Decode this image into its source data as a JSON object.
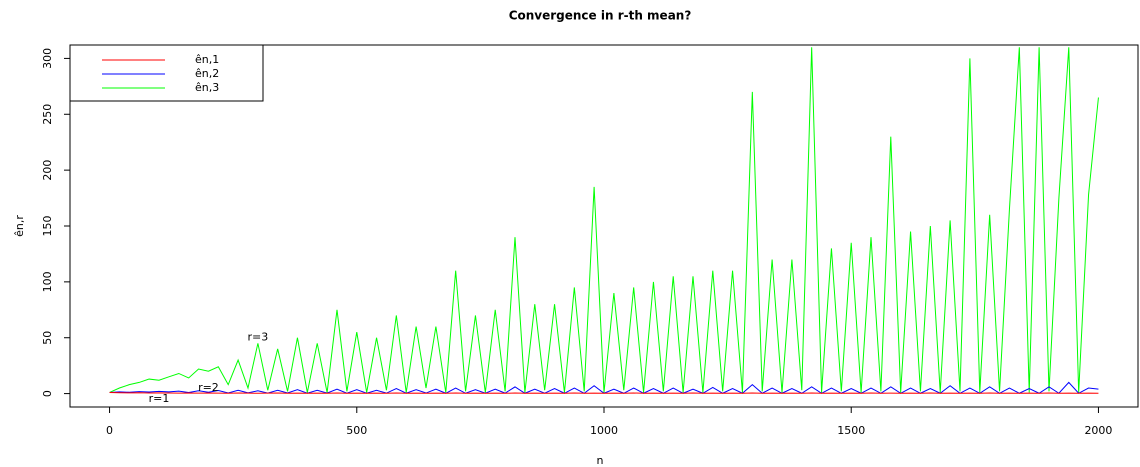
{
  "chart_data": {
    "type": "line",
    "title": "Convergence in r-th mean?",
    "xlabel": "n",
    "ylabel": "ên,r",
    "xlim": [
      -80,
      2080
    ],
    "ylim": [
      -12,
      312
    ],
    "xticks": [
      0,
      500,
      1000,
      1500,
      2000
    ],
    "yticks": [
      0,
      50,
      100,
      150,
      200,
      250,
      300
    ],
    "legend": "top-left",
    "x": [
      0,
      20,
      40,
      60,
      80,
      100,
      120,
      140,
      160,
      180,
      200,
      220,
      240,
      260,
      280,
      300,
      320,
      340,
      360,
      380,
      400,
      420,
      440,
      460,
      480,
      500,
      520,
      540,
      560,
      580,
      600,
      620,
      640,
      660,
      680,
      700,
      720,
      740,
      760,
      780,
      800,
      820,
      840,
      860,
      880,
      900,
      920,
      940,
      960,
      980,
      1000,
      1020,
      1040,
      1060,
      1080,
      1100,
      1120,
      1140,
      1160,
      1180,
      1200,
      1220,
      1240,
      1260,
      1280,
      1300,
      1320,
      1340,
      1360,
      1380,
      1400,
      1420,
      1440,
      1460,
      1480,
      1500,
      1520,
      1540,
      1560,
      1580,
      1600,
      1620,
      1640,
      1660,
      1680,
      1700,
      1720,
      1740,
      1760,
      1780,
      1800,
      1820,
      1840,
      1860,
      1880,
      1900,
      1920,
      1940,
      1960,
      1980,
      2000
    ],
    "series": [
      {
        "name": "ên,1",
        "color": "#ff0000",
        "values": [
          1,
          0.8,
          0.6,
          0.7,
          0.5,
          0.6,
          0.5,
          0.4,
          0.5,
          0.4,
          0.5,
          0.4,
          0.3,
          0.5,
          0.4,
          0.3,
          0.4,
          0.5,
          0.3,
          0.4,
          0.3,
          0.4,
          0.3,
          0.5,
          0.3,
          0.4,
          0.3,
          0.4,
          0.3,
          0.5,
          0.3,
          0.4,
          0.3,
          0.4,
          0.3,
          0.5,
          0.3,
          0.4,
          0.3,
          0.4,
          0.3,
          0.5,
          0.3,
          0.4,
          0.3,
          0.4,
          0.3,
          0.5,
          0.3,
          0.4,
          0.3,
          0.4,
          0.3,
          0.5,
          0.3,
          0.4,
          0.3,
          0.4,
          0.3,
          0.5,
          0.3,
          0.4,
          0.3,
          0.4,
          0.3,
          0.5,
          0.3,
          0.4,
          0.3,
          0.4,
          0.3,
          0.5,
          0.3,
          0.4,
          0.3,
          0.4,
          0.3,
          0.5,
          0.3,
          0.4,
          0.3,
          0.4,
          0.3,
          0.5,
          0.3,
          0.4,
          0.3,
          0.4,
          0.3,
          0.5,
          0.3,
          0.4,
          0.3,
          0.4,
          0.3,
          0.5,
          0.3,
          0.4,
          0.3,
          0.4,
          0.3
        ]
      },
      {
        "name": "ên,2",
        "color": "#0000ff",
        "values": [
          1,
          1.5,
          1.2,
          1.8,
          1.4,
          2,
          1.5,
          2.2,
          1,
          2.5,
          1.2,
          2.8,
          0.5,
          3,
          0.6,
          2.5,
          0.4,
          3,
          0.5,
          3.5,
          0.3,
          3,
          0.4,
          4,
          0.3,
          3.5,
          0.3,
          3,
          0.4,
          4.5,
          0.3,
          3.5,
          0.5,
          4,
          0.3,
          5,
          0.3,
          3.5,
          0.3,
          4,
          0.4,
          6,
          0.3,
          4,
          0.3,
          4.5,
          0.3,
          5,
          0.3,
          7,
          0.3,
          4,
          0.3,
          5,
          0.3,
          4.5,
          0.3,
          5,
          0.3,
          4,
          0.3,
          5.5,
          0.3,
          4.5,
          0.3,
          8,
          0.3,
          5,
          0.3,
          4.5,
          0.3,
          6,
          0.3,
          5,
          0.3,
          4.5,
          0.3,
          5,
          0.3,
          6,
          0.3,
          5,
          0.3,
          4.5,
          0.3,
          7,
          0.3,
          5,
          0.3,
          6,
          0.3,
          5,
          0.3,
          4.5,
          0.3,
          6,
          0.3,
          10,
          0.3,
          5,
          4
        ]
      },
      {
        "name": "ên,3",
        "color": "#00ff00",
        "values": [
          1,
          5,
          8,
          10,
          13,
          12,
          15,
          18,
          14,
          22,
          20,
          24,
          8,
          30,
          5,
          45,
          3,
          40,
          2,
          50,
          1,
          45,
          1,
          75,
          2,
          55,
          1,
          50,
          3,
          70,
          1,
          60,
          5,
          60,
          1,
          110,
          2,
          70,
          1,
          75,
          2,
          140,
          1,
          80,
          3,
          80,
          1,
          95,
          2,
          185,
          1,
          90,
          3,
          95,
          1,
          100,
          2,
          105,
          1,
          105,
          1,
          110,
          2,
          110,
          1,
          270,
          2,
          120,
          1,
          120,
          3,
          310,
          1,
          130,
          2,
          135,
          1,
          140,
          2,
          230,
          1,
          145,
          2,
          150,
          1,
          155,
          2,
          300,
          1,
          160,
          2,
          165,
          310,
          1,
          310,
          2,
          175,
          310,
          1,
          178,
          265
        ]
      }
    ],
    "annotations": [
      {
        "text": "r=3",
        "x": 300,
        "y": 50,
        "color": "#00ff00"
      },
      {
        "text": "r=2",
        "x": 200,
        "y": 5,
        "color": "#0000ff"
      },
      {
        "text": "r=1",
        "x": 100,
        "y": -5,
        "color": "#ff0000"
      }
    ]
  }
}
